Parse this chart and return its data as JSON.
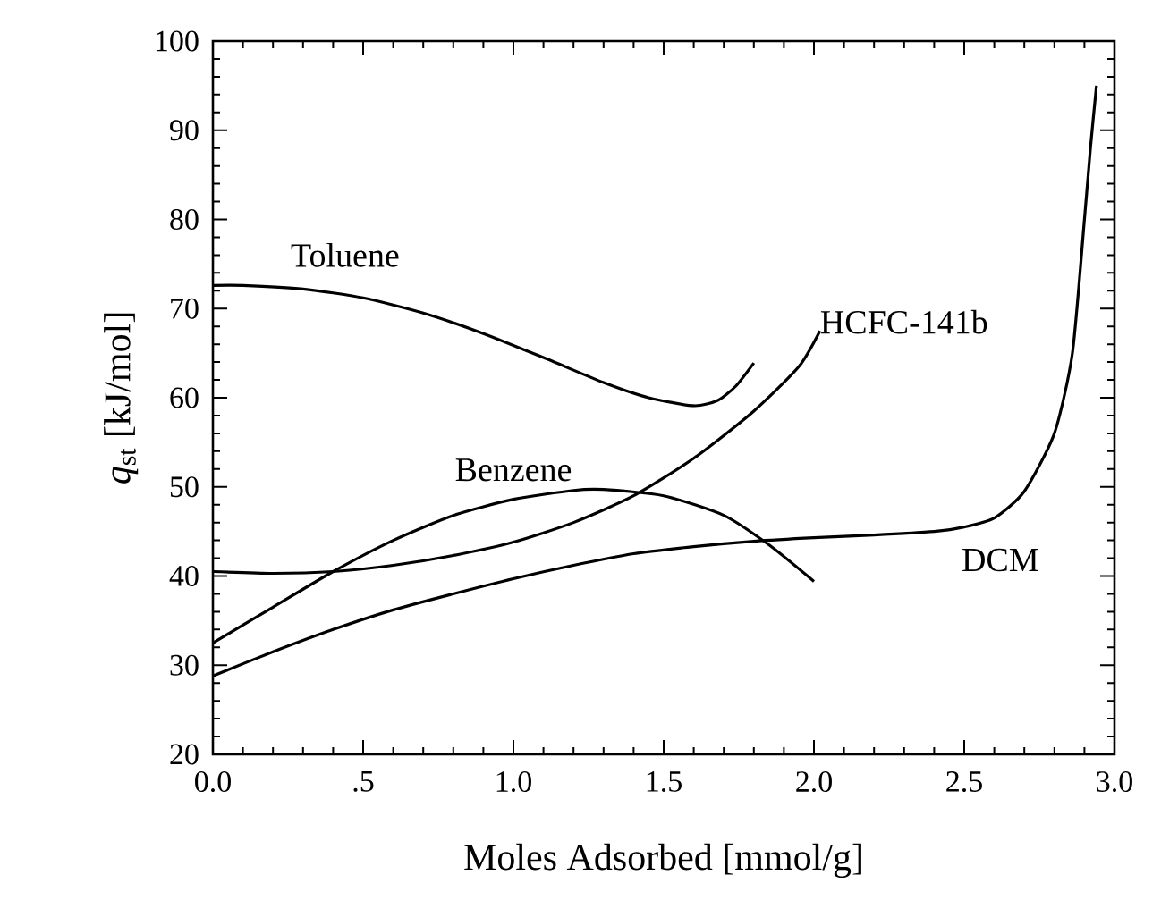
{
  "chart_data": {
    "type": "line",
    "xlabel": "Moles Adsorbed [mmol/g]",
    "ylabel": "*q*$_{st}$ [kJ/mol]",
    "xlim": [
      0,
      3
    ],
    "ylim": [
      20,
      100
    ],
    "xticks": [
      {
        "value": 0,
        "label": "0.0"
      },
      {
        "value": 0.5,
        "label": ".5"
      },
      {
        "value": 1,
        "label": "1.0"
      },
      {
        "value": 1.5,
        "label": "1.5"
      },
      {
        "value": 2,
        "label": "2.0"
      },
      {
        "value": 2.5,
        "label": "2.5"
      },
      {
        "value": 3,
        "label": "3.0"
      }
    ],
    "yticks": [
      20,
      30,
      40,
      50,
      60,
      70,
      80,
      90,
      100
    ],
    "grid": false,
    "marker": "none",
    "line_style": "solid",
    "series": [
      {
        "name": "Toluene",
        "color": "#000000",
        "x": [
          0,
          0.1,
          0.3,
          0.5,
          0.7,
          0.9,
          1.1,
          1.3,
          1.45,
          1.6,
          1.68,
          1.74,
          1.8
        ],
        "values": [
          72.6,
          72.6,
          72.2,
          71.2,
          69.5,
          67.2,
          64.5,
          61.7,
          60.0,
          59.1,
          59.7,
          61.3,
          63.9
        ]
      },
      {
        "name": "HCFC-141b",
        "color": "#000000",
        "x": [
          0,
          0.2,
          0.4,
          0.6,
          0.8,
          1.0,
          1.2,
          1.4,
          1.6,
          1.8,
          1.95,
          2.02
        ],
        "values": [
          40.5,
          40.3,
          40.5,
          41.2,
          42.3,
          43.8,
          46.0,
          49.0,
          53.2,
          58.5,
          63.5,
          67.5
        ]
      },
      {
        "name": "Benzene",
        "color": "#000000",
        "x": [
          0,
          0.2,
          0.4,
          0.6,
          0.8,
          1.0,
          1.2,
          1.3,
          1.5,
          1.7,
          1.85,
          2.0
        ],
        "values": [
          32.5,
          36.5,
          40.5,
          44.0,
          46.8,
          48.6,
          49.6,
          49.7,
          49.0,
          46.8,
          43.5,
          39.4
        ]
      },
      {
        "name": "DCM",
        "color": "#000000",
        "x": [
          0,
          0.2,
          0.4,
          0.6,
          0.8,
          1.0,
          1.2,
          1.4,
          1.6,
          1.8,
          2.0,
          2.2,
          2.4,
          2.5,
          2.6,
          2.7,
          2.8,
          2.86,
          2.9,
          2.92,
          2.94
        ],
        "values": [
          28.8,
          31.5,
          34.0,
          36.2,
          38.0,
          39.7,
          41.2,
          42.5,
          43.3,
          43.9,
          44.3,
          44.6,
          45.0,
          45.5,
          46.5,
          49.5,
          56.0,
          65.0,
          80.0,
          88.0,
          95.0
        ]
      }
    ]
  }
}
